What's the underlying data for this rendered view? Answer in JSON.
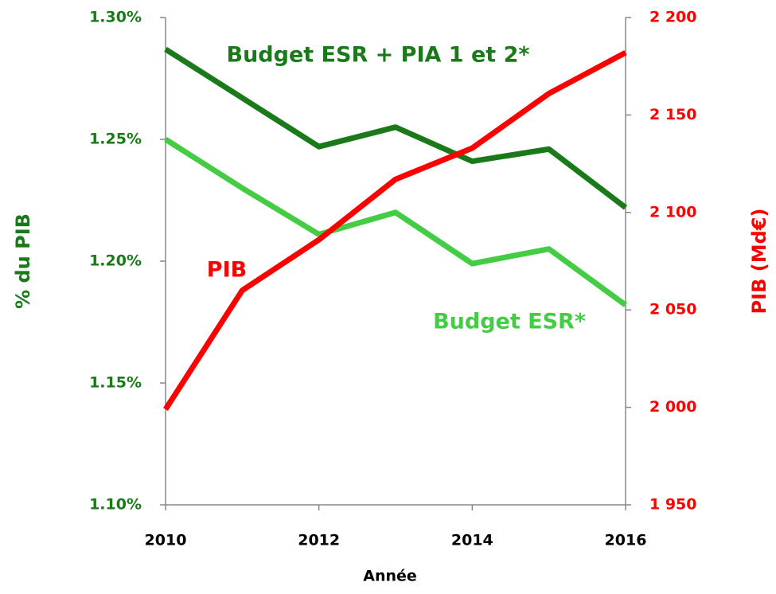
{
  "chart_data": {
    "type": "line",
    "x": [
      2010,
      2011,
      2012,
      2013,
      2014,
      2015,
      2016
    ],
    "xlim": [
      2010,
      2016
    ],
    "xticks": [
      2010,
      2012,
      2014,
      2016
    ],
    "x_label": "Année",
    "y_label": "% du PIB",
    "y2_label": "PIB (Md€)",
    "ylim": [
      1.1,
      1.3
    ],
    "yticks": [
      {
        "value": 1.1,
        "label": "1.10%"
      },
      {
        "value": 1.15,
        "label": "1.15%"
      },
      {
        "value": 1.2,
        "label": "1.20%"
      },
      {
        "value": 1.25,
        "label": "1.25%"
      },
      {
        "value": 1.3,
        "label": "1.30%"
      }
    ],
    "y2lim": [
      1950,
      2200
    ],
    "y2ticks": [
      {
        "value": 1950,
        "label": "1 950"
      },
      {
        "value": 2000,
        "label": "2 000"
      },
      {
        "value": 2050,
        "label": "2 050"
      },
      {
        "value": 2100,
        "label": "2 100"
      },
      {
        "value": 2150,
        "label": "2 150"
      },
      {
        "value": 2200,
        "label": "2 200"
      }
    ],
    "series": [
      {
        "name": "Budget ESR + PIA 1 et 2*",
        "color": "#1a7a1a",
        "values": [
          1.287,
          1.267,
          1.247,
          1.255,
          1.241,
          1.246,
          1.222
        ]
      },
      {
        "name": "Budget ESR*",
        "color": "#44cc44",
        "values": [
          1.25,
          1.23,
          1.211,
          1.22,
          1.199,
          1.205,
          1.182
        ]
      },
      {
        "name": "PIB",
        "color": "#ff0000",
        "axis": "y2",
        "values": [
          1999,
          2060,
          2086,
          2117,
          2133,
          2161,
          2182
        ]
      }
    ]
  }
}
